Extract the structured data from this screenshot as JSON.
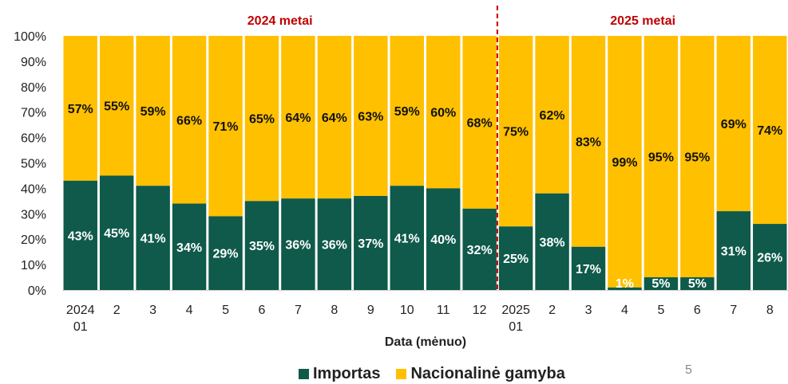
{
  "chart_data": {
    "type": "bar",
    "stacked": true,
    "percent": true,
    "categories": [
      [
        "2024",
        "01"
      ],
      [
        "2"
      ],
      [
        "3"
      ],
      [
        "4"
      ],
      [
        "5"
      ],
      [
        "6"
      ],
      [
        "7"
      ],
      [
        "8"
      ],
      [
        "9"
      ],
      [
        "10"
      ],
      [
        "11"
      ],
      [
        "12"
      ],
      [
        "2025",
        "01"
      ],
      [
        "2"
      ],
      [
        "3"
      ],
      [
        "4"
      ],
      [
        "5"
      ],
      [
        "6"
      ],
      [
        "7"
      ],
      [
        "8"
      ]
    ],
    "series": [
      {
        "name": "Importas",
        "color": "#0f5a4a",
        "values": [
          43,
          45,
          41,
          34,
          29,
          35,
          36,
          36,
          37,
          41,
          40,
          32,
          25,
          38,
          17,
          1,
          5,
          5,
          31,
          26
        ],
        "labels": [
          "43%",
          "45%",
          "41%",
          "34%",
          "29%",
          "35%",
          "36%",
          "36%",
          "37%",
          "41%",
          "40%",
          "32%",
          "25%",
          "38%",
          "17%",
          "1%",
          "5%",
          "5%",
          "31%",
          "26%"
        ]
      },
      {
        "name": "Nacionalinė gamyba",
        "color": "#ffc000",
        "values": [
          57,
          55,
          59,
          66,
          71,
          65,
          64,
          64,
          63,
          59,
          60,
          68,
          75,
          62,
          83,
          99,
          95,
          95,
          69,
          74
        ],
        "labels": [
          "57%",
          "55%",
          "59%",
          "66%",
          "71%",
          "65%",
          "64%",
          "64%",
          "63%",
          "59%",
          "60%",
          "68%",
          "75%",
          "62%",
          "83%",
          "99%",
          "95%",
          "95%",
          "69%",
          "74%"
        ]
      }
    ],
    "yticks": [
      "0%",
      "10%",
      "20%",
      "30%",
      "40%",
      "50%",
      "60%",
      "70%",
      "80%",
      "90%",
      "100%"
    ],
    "ylim": [
      0,
      100
    ],
    "xlabel": "Data (mėnuo)",
    "ylabel": "",
    "legend": "bottom",
    "divider_after_index": 11,
    "period_labels": [
      {
        "text": "2024 metai",
        "start": 0,
        "end": 11
      },
      {
        "text": "2025 metai",
        "start": 12,
        "end": 19
      }
    ]
  },
  "page_number": "5"
}
